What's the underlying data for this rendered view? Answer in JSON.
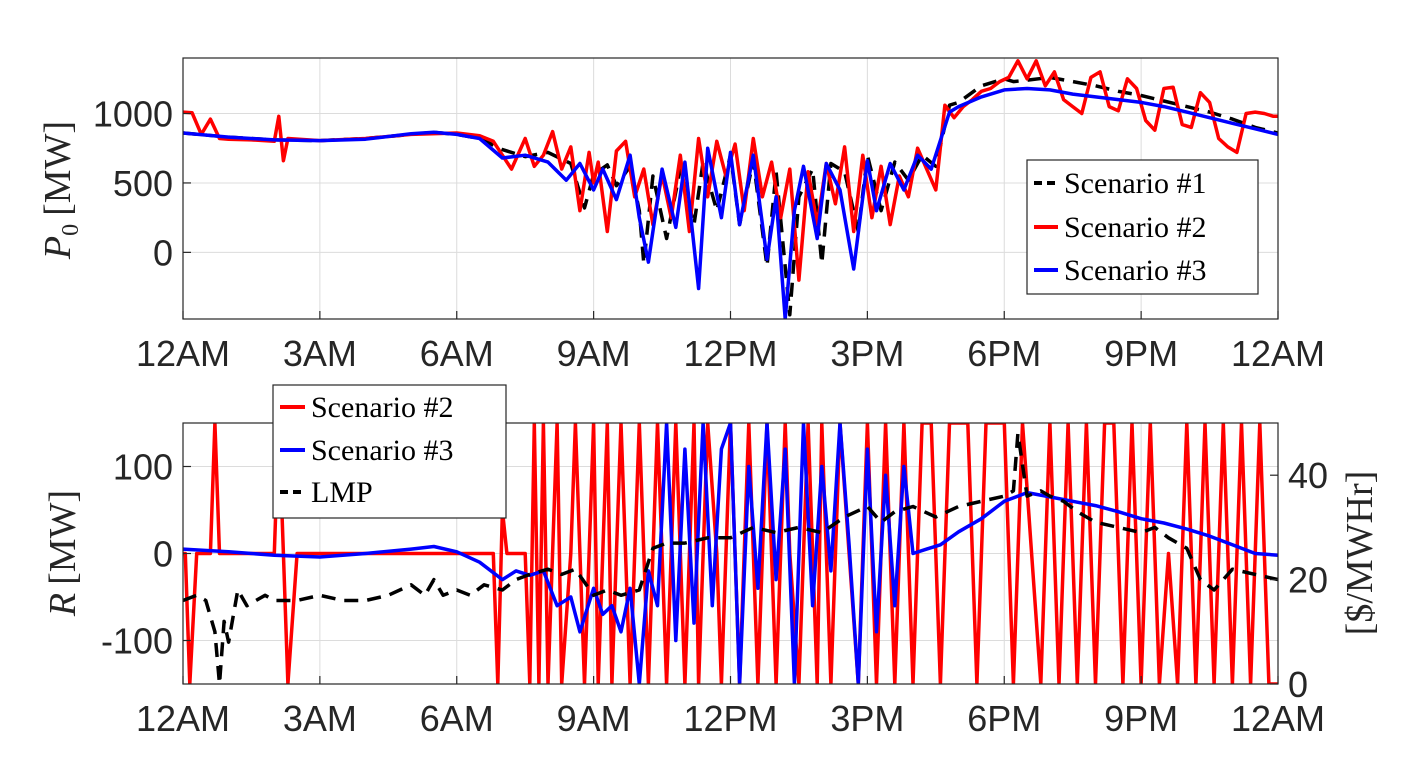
{
  "chart_data": [
    {
      "type": "line",
      "ylabel": "P_0 [MW]",
      "ylabel_main": "P",
      "ylabel_sub": "0",
      "ylabel_unit": "[MW]",
      "ylim": [
        -480,
        1400
      ],
      "yticks": [
        0,
        500,
        1000
      ],
      "ytick_labels": [
        "0",
        "500",
        "1000"
      ],
      "xlim": [
        0,
        24
      ],
      "xticks": [
        0,
        3,
        6,
        9,
        12,
        15,
        18,
        21,
        24
      ],
      "xtick_labels": [
        "12AM",
        "3AM",
        "6AM",
        "9AM",
        "12PM",
        "3PM",
        "6PM",
        "9PM",
        "12AM"
      ],
      "grid": true,
      "legend_position": "right",
      "series": [
        {
          "name": "Scenario #1",
          "color": "#000000",
          "style": "dashed",
          "x": [
            0,
            1,
            2,
            3,
            4,
            5,
            5.5,
            6,
            6.5,
            7,
            7.5,
            8,
            8.5,
            8.8,
            9,
            9.3,
            9.5,
            9.8,
            10,
            10.1,
            10.3,
            10.6,
            10.9,
            11.2,
            11.4,
            11.7,
            12,
            12.2,
            12.5,
            12.8,
            13,
            13.3,
            13.5,
            13.8,
            14,
            14.2,
            14.5,
            14.8,
            15,
            15.3,
            15.6,
            15.9,
            16.2,
            16.5,
            16.8,
            17,
            17.5,
            18,
            18.2,
            18.5,
            19,
            19.5,
            20,
            20.5,
            21,
            21.5,
            22,
            22.5,
            23,
            23.5,
            24
          ],
          "values": [
            860,
            830,
            810,
            805,
            820,
            850,
            865,
            850,
            820,
            740,
            690,
            720,
            640,
            320,
            560,
            630,
            480,
            620,
            300,
            -80,
            550,
            100,
            600,
            200,
            650,
            300,
            700,
            200,
            660,
            -100,
            580,
            -450,
            400,
            600,
            -80,
            640,
            580,
            150,
            700,
            300,
            650,
            520,
            700,
            620,
            1060,
            1080,
            1200,
            1250,
            1230,
            1240,
            1260,
            1230,
            1200,
            1160,
            1130,
            1090,
            1050,
            1010,
            960,
            900,
            860
          ]
        },
        {
          "name": "Scenario #2",
          "color": "#ff0000",
          "style": "solid",
          "x": [
            0,
            0.2,
            0.4,
            0.6,
            0.8,
            1,
            1.5,
            2,
            2.1,
            2.2,
            2.3,
            3,
            4,
            5,
            6,
            6.5,
            6.8,
            7,
            7.2,
            7.5,
            7.7,
            7.9,
            8.1,
            8.3,
            8.5,
            8.7,
            8.9,
            9,
            9.1,
            9.3,
            9.5,
            9.7,
            9.9,
            10.1,
            10.3,
            10.5,
            10.7,
            10.9,
            11.1,
            11.3,
            11.5,
            11.7,
            11.9,
            12.1,
            12.3,
            12.5,
            12.7,
            12.9,
            13.1,
            13.3,
            13.5,
            13.7,
            13.9,
            14.1,
            14.3,
            14.5,
            14.7,
            14.9,
            15.1,
            15.3,
            15.5,
            15.7,
            15.9,
            16.1,
            16.3,
            16.5,
            16.7,
            16.9,
            17.1,
            17.3,
            17.5,
            17.7,
            17.9,
            18.1,
            18.3,
            18.5,
            18.7,
            18.9,
            19.1,
            19.3,
            19.5,
            19.7,
            19.9,
            20.1,
            20.3,
            20.5,
            20.7,
            20.9,
            21.1,
            21.3,
            21.5,
            21.7,
            21.9,
            22.1,
            22.3,
            22.5,
            22.7,
            22.9,
            23.1,
            23.3,
            23.5,
            23.7,
            23.9,
            24
          ],
          "values": [
            1010,
            1005,
            850,
            960,
            820,
            815,
            810,
            800,
            980,
            660,
            820,
            805,
            820,
            850,
            860,
            840,
            800,
            700,
            600,
            820,
            620,
            700,
            870,
            600,
            760,
            300,
            720,
            500,
            650,
            150,
            730,
            800,
            400,
            600,
            200,
            560,
            250,
            700,
            150,
            820,
            400,
            800,
            550,
            780,
            300,
            820,
            400,
            650,
            250,
            600,
            -200,
            580,
            200,
            640,
            350,
            760,
            150,
            700,
            250,
            620,
            200,
            550,
            400,
            750,
            600,
            450,
            1060,
            970,
            1050,
            1100,
            1160,
            1180,
            1230,
            1260,
            1380,
            1250,
            1380,
            1200,
            1300,
            1100,
            1050,
            1000,
            1260,
            1300,
            1050,
            1020,
            1250,
            1180,
            950,
            880,
            1180,
            1190,
            920,
            900,
            1150,
            1080,
            820,
            760,
            720,
            1000,
            1010,
            1000,
            980,
            980
          ]
        },
        {
          "name": "Scenario #3",
          "color": "#0000ff",
          "style": "solid",
          "x": [
            0,
            1,
            2,
            3,
            4,
            5,
            5.5,
            6,
            6.5,
            7,
            7.5,
            8,
            8.4,
            8.7,
            9,
            9.2,
            9.5,
            9.8,
            10,
            10.2,
            10.5,
            10.8,
            11,
            11.3,
            11.5,
            11.8,
            12,
            12.2,
            12.5,
            12.8,
            13,
            13.2,
            13.4,
            13.6,
            13.9,
            14.1,
            14.4,
            14.7,
            15,
            15.2,
            15.5,
            15.8,
            16.1,
            16.4,
            16.8,
            17,
            17.5,
            18,
            18.5,
            19,
            19.5,
            20,
            20.5,
            21,
            21.5,
            22,
            22.5,
            23,
            23.5,
            24
          ],
          "values": [
            860,
            830,
            810,
            805,
            815,
            855,
            865,
            850,
            820,
            680,
            700,
            650,
            520,
            640,
            450,
            600,
            380,
            700,
            250,
            -70,
            600,
            180,
            650,
            -260,
            750,
            250,
            720,
            200,
            700,
            -50,
            400,
            -480,
            300,
            620,
            100,
            640,
            450,
            -120,
            660,
            300,
            640,
            450,
            700,
            600,
            1010,
            1050,
            1120,
            1170,
            1180,
            1170,
            1140,
            1120,
            1100,
            1080,
            1050,
            1010,
            970,
            930,
            890,
            850
          ]
        }
      ]
    },
    {
      "type": "line",
      "ylabel": "R [MW]",
      "ylabel_main": "R",
      "ylabel_unit": "[MW]",
      "ylim": [
        -150,
        150
      ],
      "yticks": [
        -100,
        0,
        100
      ],
      "ytick_labels": [
        "-100",
        "0",
        "100"
      ],
      "ylabel_right": "[$/MWHr]",
      "ylim_right": [
        0,
        50
      ],
      "yticks_right": [
        0,
        20,
        40
      ],
      "ytick_labels_right": [
        "0",
        "20",
        "40"
      ],
      "xlim": [
        0,
        24
      ],
      "xticks": [
        0,
        3,
        6,
        9,
        12,
        15,
        18,
        21,
        24
      ],
      "xtick_labels": [
        "12AM",
        "3AM",
        "6AM",
        "9AM",
        "12PM",
        "3PM",
        "6PM",
        "9PM",
        "12AM"
      ],
      "grid": true,
      "legend_position": "top-left",
      "series": [
        {
          "name": "Scenario #2",
          "color": "#ff0000",
          "style": "solid",
          "axis": "left",
          "x": [
            0,
            0.05,
            0.15,
            0.3,
            0.6,
            0.7,
            0.8,
            1,
            1.5,
            2,
            2.1,
            2.2,
            2.3,
            2.5,
            3,
            4,
            5,
            6,
            6.8,
            6.9,
            7,
            7.1,
            7.3,
            7.5,
            7.6,
            7.7,
            7.8,
            7.9,
            8,
            8.2,
            8.3,
            8.5,
            8.6,
            8.8,
            8.9,
            9,
            9.1,
            9.3,
            9.4,
            9.5,
            9.6,
            9.8,
            10,
            10.2,
            10.4,
            10.6,
            10.7,
            10.8,
            11,
            11.2,
            11.3,
            11.5,
            11.7,
            11.8,
            12,
            12.2,
            12.4,
            12.6,
            12.8,
            13,
            13.2,
            13.3,
            13.5,
            13.7,
            13.9,
            14,
            14.2,
            14.4,
            14.6,
            14.8,
            15,
            15.2,
            15.4,
            15.6,
            15.8,
            16,
            16.2,
            16.4,
            16.6,
            16.8,
            17,
            17.2,
            17.4,
            17.6,
            17.8,
            18,
            18.2,
            18.4,
            18.6,
            18.8,
            19,
            19.2,
            19.4,
            19.6,
            19.8,
            20,
            20.2,
            20.4,
            20.6,
            20.8,
            21,
            21.2,
            21.4,
            21.6,
            21.8,
            22,
            22.2,
            22.4,
            22.6,
            22.8,
            23,
            23.2,
            23.4,
            23.6,
            23.8,
            24
          ],
          "values": [
            0,
            0,
            -150,
            0,
            0,
            150,
            0,
            0,
            0,
            0,
            150,
            0,
            -150,
            0,
            0,
            0,
            0,
            0,
            0,
            -150,
            50,
            0,
            0,
            0,
            -150,
            150,
            -150,
            150,
            -150,
            150,
            -150,
            0,
            150,
            -150,
            0,
            150,
            -150,
            150,
            -150,
            0,
            150,
            -150,
            150,
            -150,
            150,
            -150,
            0,
            150,
            -150,
            150,
            -150,
            150,
            0,
            -150,
            150,
            -150,
            150,
            -150,
            150,
            -150,
            150,
            0,
            -150,
            150,
            -150,
            150,
            -150,
            150,
            0,
            -150,
            150,
            -150,
            150,
            -150,
            150,
            -150,
            150,
            150,
            -150,
            150,
            150,
            150,
            -150,
            150,
            150,
            150,
            -150,
            150,
            0,
            -150,
            150,
            -150,
            150,
            -150,
            150,
            -150,
            150,
            150,
            -150,
            150,
            -150,
            150,
            -150,
            0,
            -150,
            150,
            -150,
            150,
            -150,
            150,
            -150,
            150,
            -150,
            150,
            -150,
            -150
          ]
        },
        {
          "name": "Scenario #3",
          "color": "#0000ff",
          "style": "solid",
          "axis": "left",
          "x": [
            0,
            1,
            2,
            3,
            4,
            5,
            5.5,
            6,
            6.5,
            7,
            7.3,
            7.6,
            7.9,
            8.2,
            8.5,
            8.7,
            9,
            9.2,
            9.4,
            9.6,
            9.8,
            10,
            10.2,
            10.4,
            10.6,
            10.8,
            11,
            11.2,
            11.4,
            11.6,
            11.8,
            12,
            12.2,
            12.4,
            12.6,
            12.8,
            13,
            13.2,
            13.4,
            13.6,
            13.8,
            14,
            14.2,
            14.4,
            14.6,
            14.8,
            15,
            15.2,
            15.4,
            15.6,
            15.8,
            16,
            16.3,
            16.6,
            17,
            17.5,
            18,
            18.5,
            19,
            19.5,
            20,
            20.5,
            21,
            21.5,
            22,
            22.5,
            23,
            23.5,
            24
          ],
          "values": [
            5,
            2,
            -2,
            -4,
            0,
            5,
            8,
            2,
            -10,
            -30,
            -20,
            -25,
            -20,
            -60,
            -50,
            -90,
            -40,
            -70,
            -60,
            -90,
            -40,
            -150,
            -20,
            -60,
            150,
            -100,
            120,
            -80,
            150,
            -60,
            120,
            150,
            -150,
            100,
            -40,
            150,
            -30,
            120,
            -150,
            150,
            -60,
            100,
            -20,
            150,
            10,
            -150,
            120,
            -90,
            90,
            -60,
            100,
            0,
            5,
            10,
            25,
            40,
            60,
            70,
            65,
            60,
            55,
            48,
            40,
            35,
            28,
            20,
            10,
            0,
            -2
          ]
        },
        {
          "name": "LMP",
          "color": "#000000",
          "style": "dashed",
          "axis": "right",
          "x": [
            0,
            0.3,
            0.5,
            0.7,
            0.8,
            0.9,
            1,
            1.2,
            1.4,
            1.6,
            1.8,
            2,
            2.5,
            3,
            3.5,
            4,
            4.5,
            5,
            5.3,
            5.5,
            5.7,
            6,
            6.3,
            6.6,
            7,
            7.3,
            7.6,
            8,
            8.3,
            8.6,
            9,
            9.3,
            9.6,
            10,
            10.3,
            10.6,
            11,
            11.5,
            12,
            12.5,
            13,
            13.5,
            14,
            14.5,
            15,
            15.3,
            15.6,
            16,
            16.5,
            17,
            17.5,
            18,
            18.2,
            18.3,
            18.5,
            18.8,
            19,
            19.3,
            19.6,
            20,
            20.5,
            21,
            21.3,
            21.6,
            22,
            22.3,
            22.6,
            23,
            23.5,
            24
          ],
          "values": [
            16,
            17,
            16,
            10,
            0,
            12,
            8,
            18,
            15,
            16,
            17,
            16,
            16,
            17,
            16,
            16,
            17,
            19,
            17,
            20,
            17,
            18,
            17,
            19,
            18,
            20,
            21,
            22,
            21,
            22,
            17,
            18,
            17,
            18,
            26,
            27,
            27,
            28,
            28,
            30,
            29,
            30,
            29,
            32,
            34,
            31,
            33,
            34,
            32,
            34,
            35,
            36,
            37,
            48,
            36,
            37,
            36,
            35,
            33,
            31,
            30,
            29,
            30,
            28,
            26,
            20,
            18,
            22,
            21,
            20
          ]
        }
      ]
    }
  ]
}
